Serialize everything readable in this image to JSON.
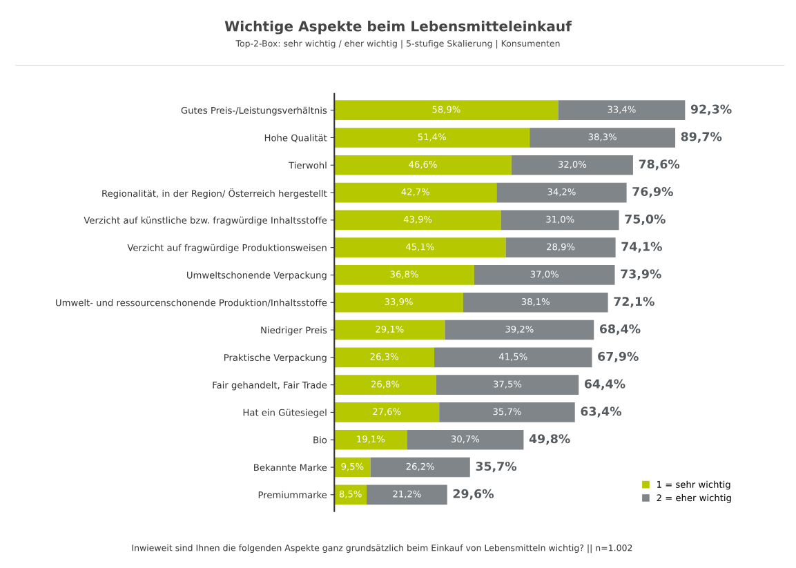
{
  "chart_data": {
    "type": "bar",
    "orientation": "horizontal",
    "stacked": true,
    "title": "Wichtige Aspekte beim Lebensmitteleinkauf",
    "subtitle": "Top-2-Box: sehr wichtig / eher wichtig | 5-stufige Skalierung | Konsumenten",
    "categories": [
      "Gutes Preis-/Leistungsverhältnis",
      "Hohe Qualität",
      "Tierwohl",
      "Regionalität, in der Region/ Österreich hergestellt",
      "Verzicht auf künstliche bzw. fragwürdige Inhaltsstoffe",
      "Verzicht auf fragwürdige Produktionsweisen",
      "Umweltschonende Verpackung",
      "Umwelt- und ressourcenschonende Produktion/Inhaltsstoffe",
      "Niedriger Preis",
      "Praktische Verpackung",
      "Fair gehandelt, Fair Trade",
      "Hat ein Gütesiegel",
      "Bio",
      "Bekannte Marke",
      "Premiummarke"
    ],
    "series": [
      {
        "name": "1 = sehr wichtig",
        "color": "#b5c800",
        "values": [
          58.9,
          51.4,
          46.6,
          42.7,
          43.9,
          45.1,
          36.8,
          33.9,
          29.1,
          26.3,
          26.8,
          27.6,
          19.1,
          9.5,
          8.5
        ],
        "value_labels": [
          "58,9%",
          "51,4%",
          "46,6%",
          "42,7%",
          "43,9%",
          "45,1%",
          "36,8%",
          "33,9%",
          "29,1%",
          "26,3%",
          "26,8%",
          "27,6%",
          "19,1%",
          "9,5%",
          "8,5%"
        ]
      },
      {
        "name": "2 = eher wichtig",
        "color": "#7f8589",
        "values": [
          33.4,
          38.3,
          32.0,
          34.2,
          31.0,
          28.9,
          37.0,
          38.1,
          39.2,
          41.5,
          37.5,
          35.7,
          30.7,
          26.2,
          21.2
        ],
        "value_labels": [
          "33,4%",
          "38,3%",
          "32,0%",
          "34,2%",
          "31,0%",
          "28,9%",
          "37,0%",
          "38,1%",
          "39,2%",
          "41,5%",
          "37,5%",
          "35,7%",
          "30,7%",
          "26,2%",
          "21,2%"
        ]
      }
    ],
    "totals": [
      "92,3%",
      "89,7%",
      "78,6%",
      "76,9%",
      "75,0%",
      "74,1%",
      "73,9%",
      "72,1%",
      "68,4%",
      "67,9%",
      "64,4%",
      "63,4%",
      "49,8%",
      "35,7%",
      "29,6%"
    ],
    "legend": "bottom right",
    "annotations": [
      "Inwieweit sind Ihnen die folgenden Aspekte ganz grundsätzlich beim Einkauf von Lebensmitteln wichtig? || n=1.002"
    ]
  }
}
